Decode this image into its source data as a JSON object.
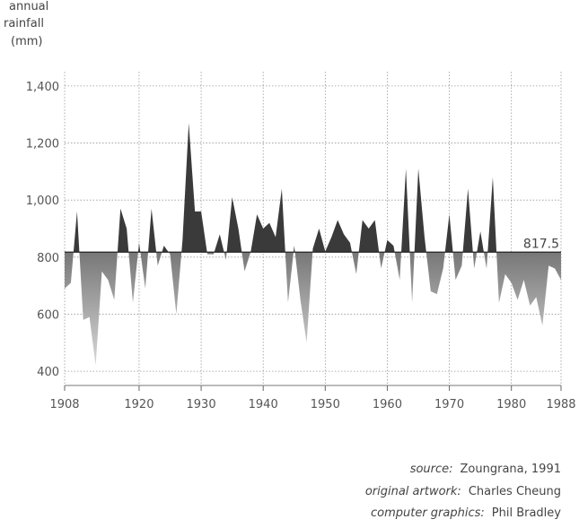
{
  "chart_data": {
    "type": "area",
    "ylabel": [
      "annual",
      "rainfall",
      "(mm)"
    ],
    "baseline": 817.5,
    "baseline_label": "817.5",
    "xlim": [
      1908,
      1988
    ],
    "ylim": [
      350,
      1450
    ],
    "xticks": [
      1908,
      1920,
      1930,
      1940,
      1950,
      1960,
      1970,
      1980,
      1988
    ],
    "xtick_labels": [
      "1908",
      "1920",
      "1930",
      "1940",
      "1950",
      "1960",
      "1970",
      "1980",
      "1988"
    ],
    "yticks": [
      400,
      600,
      800,
      1000,
      1200,
      1400
    ],
    "ytick_labels": [
      "400",
      "600",
      "800",
      "1,000",
      "1,200",
      "1,400"
    ],
    "grid": true,
    "colors": {
      "above": "#3a3a3a",
      "below_top": "#777777",
      "below_bottom": "#d8d8d8",
      "grid": "#999999"
    },
    "x": [
      1908,
      1909,
      1910,
      1911,
      1912,
      1913,
      1914,
      1915,
      1916,
      1917,
      1918,
      1919,
      1920,
      1921,
      1922,
      1923,
      1924,
      1925,
      1926,
      1927,
      1928,
      1929,
      1930,
      1931,
      1932,
      1933,
      1934,
      1935,
      1936,
      1937,
      1938,
      1939,
      1940,
      1941,
      1942,
      1943,
      1944,
      1945,
      1946,
      1947,
      1948,
      1949,
      1950,
      1951,
      1952,
      1953,
      1954,
      1955,
      1956,
      1957,
      1958,
      1959,
      1960,
      1961,
      1962,
      1963,
      1964,
      1965,
      1966,
      1967,
      1968,
      1969,
      1970,
      1971,
      1972,
      1973,
      1974,
      1975,
      1976,
      1977,
      1978,
      1979,
      1980,
      1981,
      1982,
      1983,
      1984,
      1985,
      1986,
      1987,
      1988
    ],
    "values": [
      690,
      710,
      960,
      580,
      590,
      420,
      750,
      720,
      650,
      970,
      900,
      640,
      850,
      690,
      970,
      770,
      840,
      810,
      600,
      860,
      1270,
      960,
      960,
      810,
      810,
      880,
      790,
      1010,
      900,
      750,
      820,
      950,
      900,
      920,
      870,
      1040,
      640,
      840,
      650,
      500,
      830,
      900,
      820,
      870,
      930,
      880,
      850,
      740,
      930,
      900,
      930,
      760,
      860,
      840,
      720,
      1110,
      640,
      1110,
      870,
      680,
      670,
      760,
      950,
      720,
      770,
      1040,
      760,
      890,
      760,
      1080,
      640,
      740,
      710,
      650,
      720,
      630,
      660,
      560,
      770,
      760,
      720
    ]
  },
  "credits": [
    {
      "label": "source:",
      "value": "Zoungrana, 1991"
    },
    {
      "label": "original artwork:",
      "value": "Charles Cheung"
    },
    {
      "label": "computer graphics:",
      "value": "Phil Bradley"
    }
  ]
}
